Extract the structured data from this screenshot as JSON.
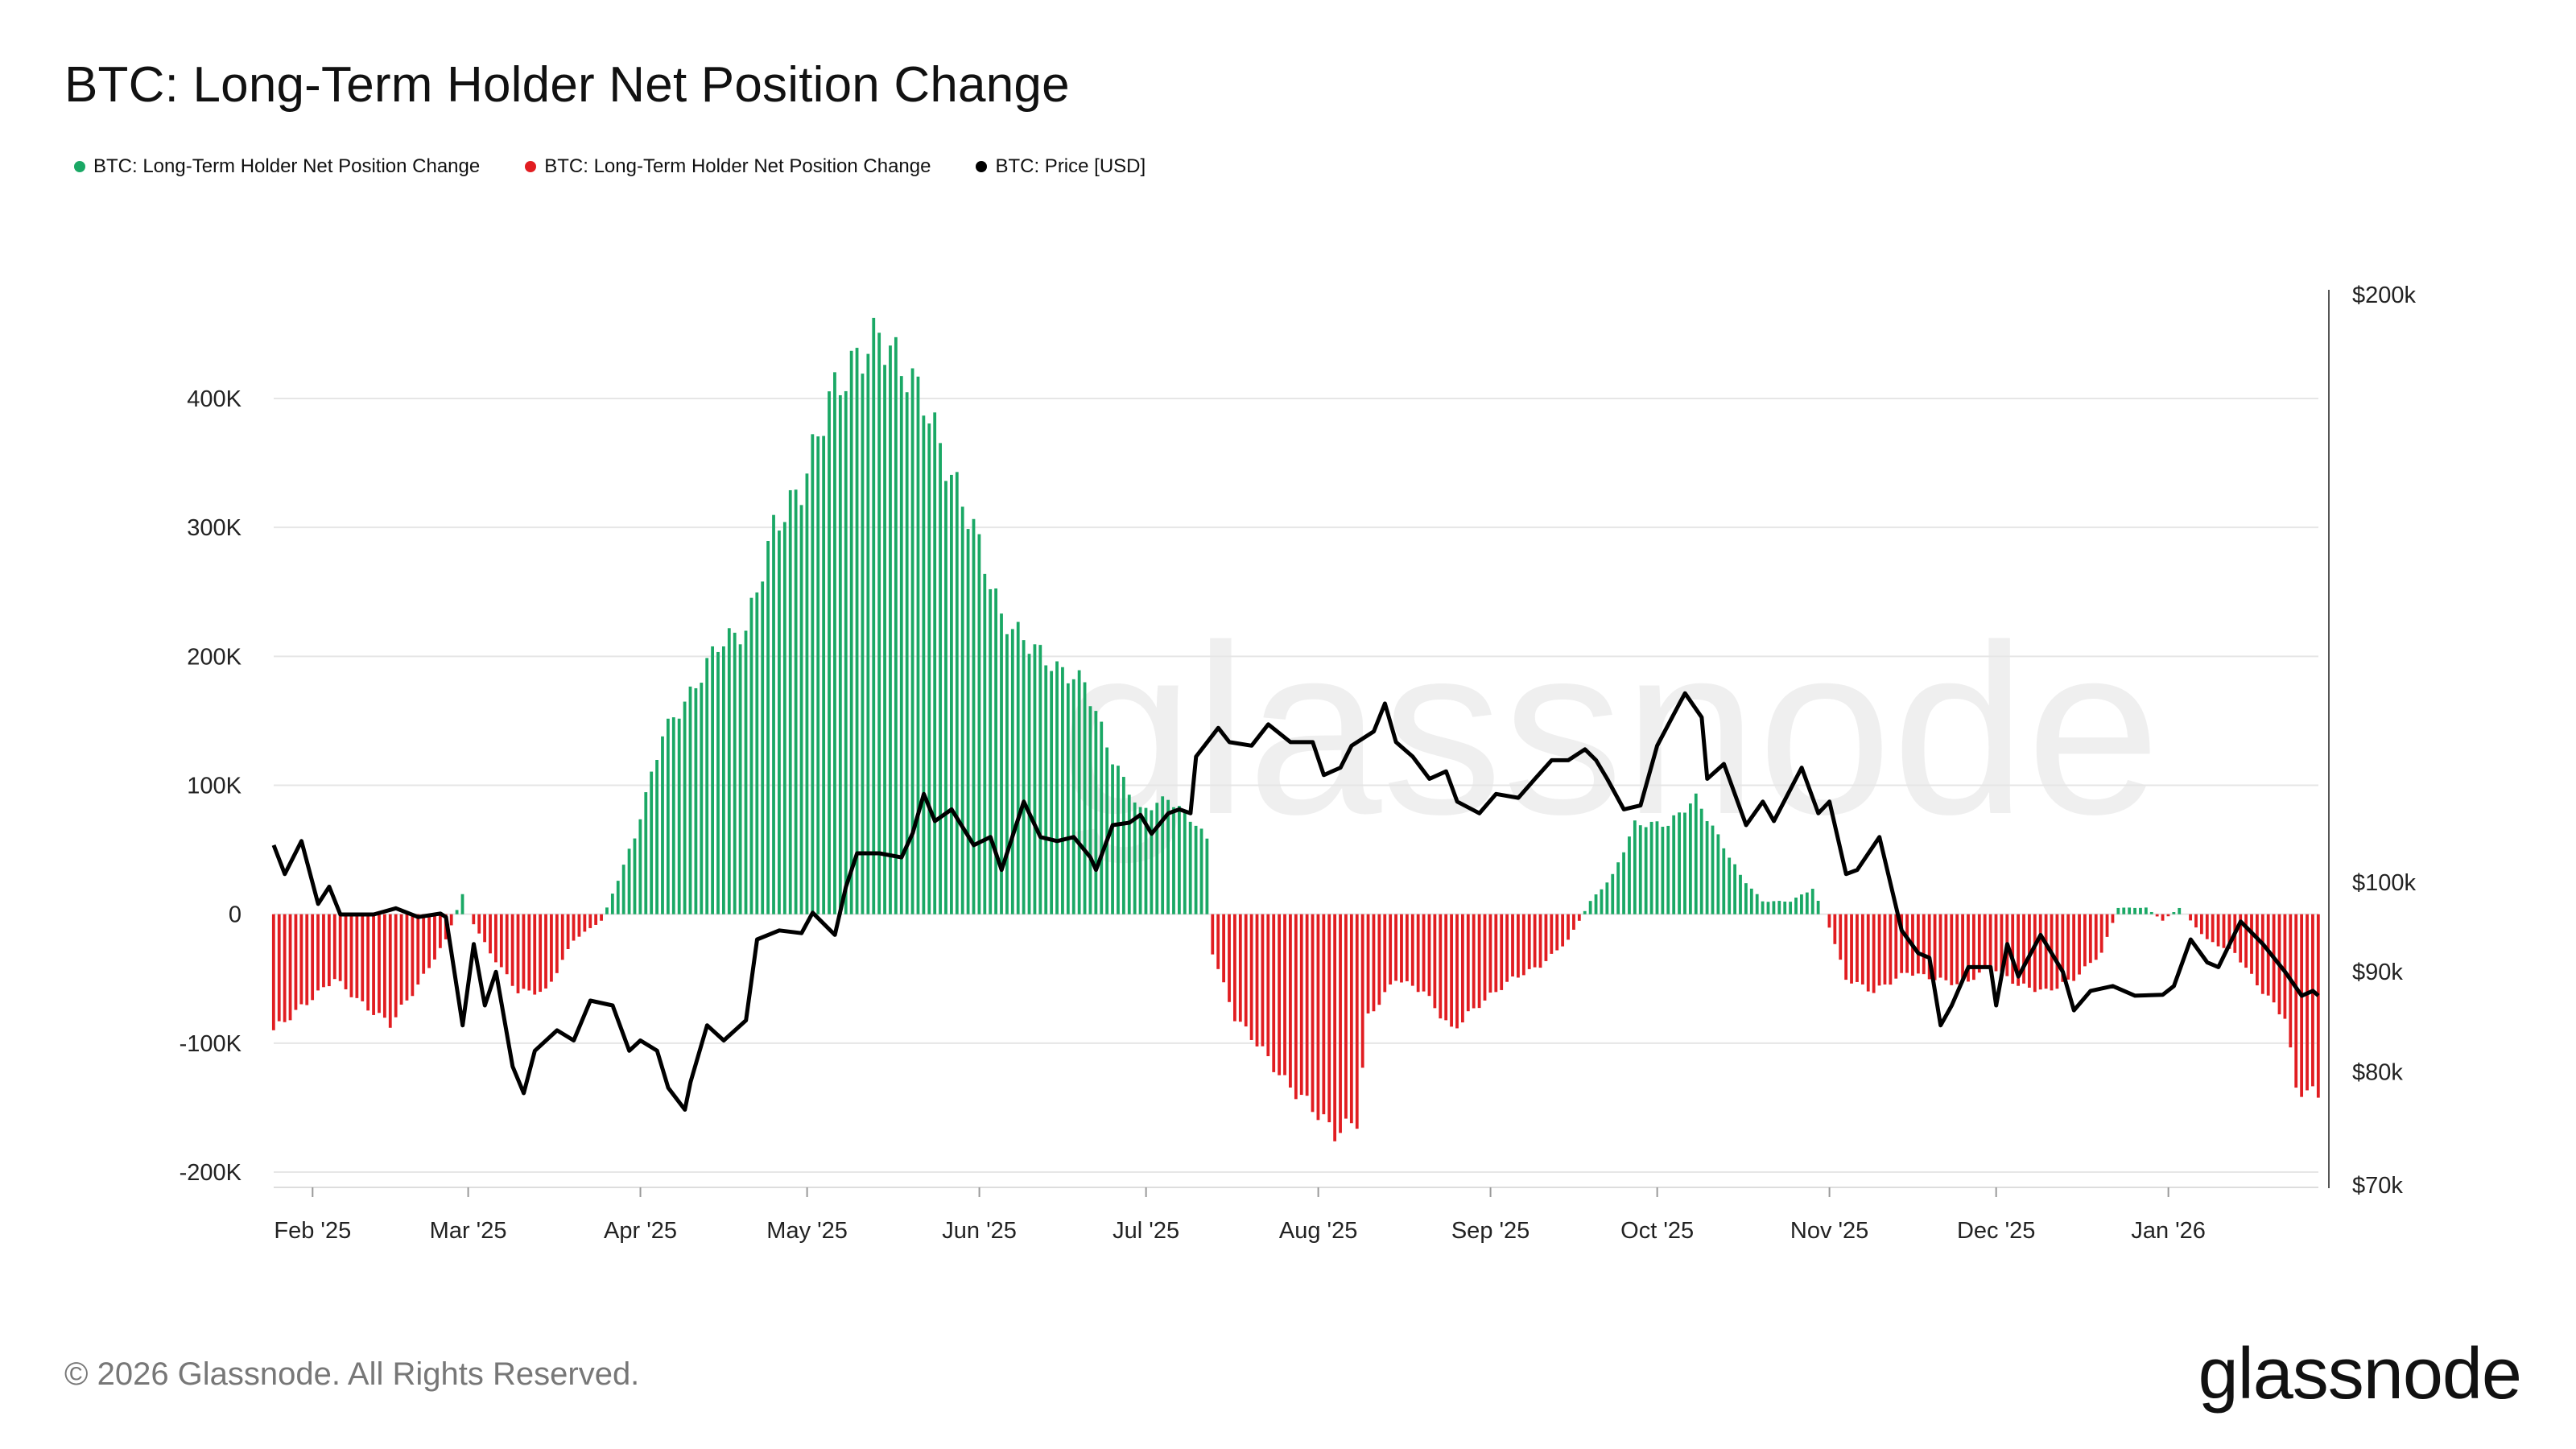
{
  "title": "BTC: Long-Term Holder Net Position Change",
  "legend": [
    {
      "label": "BTC: Long-Term Holder Net Position Change",
      "color": "#1aa865"
    },
    {
      "label": "BTC: Long-Term Holder Net Position Change",
      "color": "#e11d21"
    },
    {
      "label": "BTC: Price [USD]",
      "color": "#000000"
    }
  ],
  "footer": {
    "copyright": "© 2026 Glassnode. All Rights Reserved.",
    "logo": "glassnode"
  },
  "watermark": "glassnode",
  "colors": {
    "positive": "#1aa865",
    "negative": "#e11d21",
    "price": "#000000"
  },
  "chart_data": {
    "type": "bar",
    "title": "BTC: Long-Term Holder Net Position Change",
    "x_range": [
      "2025-01-25",
      "2026-01-28"
    ],
    "x_ticks": [
      {
        "label": "Feb '25",
        "date": "2025-02-01"
      },
      {
        "label": "Mar '25",
        "date": "2025-03-01"
      },
      {
        "label": "Apr '25",
        "date": "2025-04-01"
      },
      {
        "label": "May '25",
        "date": "2025-05-01"
      },
      {
        "label": "Jun '25",
        "date": "2025-06-01"
      },
      {
        "label": "Jul '25",
        "date": "2025-07-01"
      },
      {
        "label": "Aug '25",
        "date": "2025-08-01"
      },
      {
        "label": "Sep '25",
        "date": "2025-09-01"
      },
      {
        "label": "Oct '25",
        "date": "2025-10-01"
      },
      {
        "label": "Nov '25",
        "date": "2025-11-01"
      },
      {
        "label": "Dec '25",
        "date": "2025-12-01"
      },
      {
        "label": "Jan '26",
        "date": "2026-01-01"
      }
    ],
    "left_axis": {
      "ylim": [
        -200000,
        400000
      ],
      "ticks": [
        {
          "label": "400K",
          "value": 400000
        },
        {
          "label": "300K",
          "value": 300000
        },
        {
          "label": "200K",
          "value": 200000
        },
        {
          "label": "100K",
          "value": 100000
        },
        {
          "label": "0",
          "value": 0
        },
        {
          "label": "-100K",
          "value": -100000
        },
        {
          "label": "-200K",
          "value": -200000
        }
      ]
    },
    "right_axis": {
      "scale": "log",
      "ylim": [
        70000,
        200000
      ],
      "ticks": [
        {
          "label": "$200k",
          "value": 200000
        },
        {
          "label": "$100k",
          "value": 100000
        },
        {
          "label": "$90k",
          "value": 90000
        },
        {
          "label": "$80k",
          "value": 80000
        },
        {
          "label": "$70k",
          "value": 70000
        }
      ]
    },
    "net_position_change": [
      [
        "2025-01-25",
        -90000
      ],
      [
        "2025-02-01",
        -65000
      ],
      [
        "2025-02-05",
        -50000
      ],
      [
        "2025-02-10",
        -70000
      ],
      [
        "2025-02-15",
        -85000
      ],
      [
        "2025-02-20",
        -55000
      ],
      [
        "2025-02-25",
        -20000
      ],
      [
        "2025-02-28",
        15000
      ],
      [
        "2025-03-01",
        0
      ],
      [
        "2025-03-05",
        -30000
      ],
      [
        "2025-03-10",
        -60000
      ],
      [
        "2025-03-15",
        -60000
      ],
      [
        "2025-03-20",
        -20000
      ],
      [
        "2025-03-25",
        -5000
      ],
      [
        "2025-03-26",
        5000
      ],
      [
        "2025-03-31",
        60000
      ],
      [
        "2025-04-05",
        140000
      ],
      [
        "2025-04-10",
        170000
      ],
      [
        "2025-04-15",
        210000
      ],
      [
        "2025-04-20",
        220000
      ],
      [
        "2025-04-25",
        300000
      ],
      [
        "2025-04-30",
        330000
      ],
      [
        "2025-05-05",
        400000
      ],
      [
        "2025-05-10",
        430000
      ],
      [
        "2025-05-14",
        450000
      ],
      [
        "2025-05-18",
        425000
      ],
      [
        "2025-05-22",
        400000
      ],
      [
        "2025-05-26",
        350000
      ],
      [
        "2025-05-31",
        300000
      ],
      [
        "2025-06-05",
        230000
      ],
      [
        "2025-06-10",
        210000
      ],
      [
        "2025-06-15",
        190000
      ],
      [
        "2025-06-20",
        180000
      ],
      [
        "2025-06-25",
        120000
      ],
      [
        "2025-06-30",
        80000
      ],
      [
        "2025-07-05",
        90000
      ],
      [
        "2025-07-10",
        70000
      ],
      [
        "2025-07-12",
        58000
      ],
      [
        "2025-07-13",
        -30000
      ],
      [
        "2025-07-17",
        -80000
      ],
      [
        "2025-07-21",
        -100000
      ],
      [
        "2025-07-26",
        -130000
      ],
      [
        "2025-07-31",
        -150000
      ],
      [
        "2025-08-04",
        -170000
      ],
      [
        "2025-08-08",
        -160000
      ],
      [
        "2025-08-10",
        -80000
      ],
      [
        "2025-08-15",
        -50000
      ],
      [
        "2025-08-20",
        -60000
      ],
      [
        "2025-08-25",
        -90000
      ],
      [
        "2025-08-30",
        -70000
      ],
      [
        "2025-09-05",
        -50000
      ],
      [
        "2025-09-10",
        -40000
      ],
      [
        "2025-09-15",
        -20000
      ],
      [
        "2025-09-19",
        10000
      ],
      [
        "2025-09-23",
        30000
      ],
      [
        "2025-09-27",
        70000
      ],
      [
        "2025-10-03",
        70000
      ],
      [
        "2025-10-08",
        90000
      ],
      [
        "2025-10-12",
        60000
      ],
      [
        "2025-10-16",
        30000
      ],
      [
        "2025-10-20",
        10000
      ],
      [
        "2025-10-25",
        10000
      ],
      [
        "2025-10-29",
        20000
      ],
      [
        "2025-11-01",
        -10000
      ],
      [
        "2025-11-04",
        -50000
      ],
      [
        "2025-11-09",
        -60000
      ],
      [
        "2025-11-15",
        -45000
      ],
      [
        "2025-11-20",
        -50000
      ],
      [
        "2025-11-25",
        -55000
      ],
      [
        "2025-11-30",
        -40000
      ],
      [
        "2025-12-05",
        -55000
      ],
      [
        "2025-12-10",
        -60000
      ],
      [
        "2025-12-15",
        -50000
      ],
      [
        "2025-12-20",
        -30000
      ],
      [
        "2025-12-23",
        5000
      ],
      [
        "2025-12-28",
        5000
      ],
      [
        "2025-12-31",
        -5000
      ],
      [
        "2026-01-03",
        5000
      ],
      [
        "2026-01-08",
        -20000
      ],
      [
        "2026-01-13",
        -30000
      ],
      [
        "2026-01-18",
        -60000
      ],
      [
        "2026-01-22",
        -80000
      ],
      [
        "2026-01-24",
        -135000
      ],
      [
        "2026-01-28",
        -140000
      ]
    ],
    "price": [
      [
        "2025-01-25",
        104500
      ],
      [
        "2025-01-27",
        101000
      ],
      [
        "2025-01-30",
        105000
      ],
      [
        "2025-02-02",
        97500
      ],
      [
        "2025-02-04",
        99500
      ],
      [
        "2025-02-06",
        96300
      ],
      [
        "2025-02-12",
        96300
      ],
      [
        "2025-02-16",
        97000
      ],
      [
        "2025-02-20",
        96000
      ],
      [
        "2025-02-24",
        96400
      ],
      [
        "2025-02-25",
        96000
      ],
      [
        "2025-02-28",
        84500
      ],
      [
        "2025-03-02",
        93000
      ],
      [
        "2025-03-04",
        86500
      ],
      [
        "2025-03-06",
        90000
      ],
      [
        "2025-03-09",
        80500
      ],
      [
        "2025-03-11",
        78000
      ],
      [
        "2025-03-13",
        82000
      ],
      [
        "2025-03-17",
        84000
      ],
      [
        "2025-03-20",
        83000
      ],
      [
        "2025-03-23",
        87000
      ],
      [
        "2025-03-27",
        86500
      ],
      [
        "2025-03-30",
        82000
      ],
      [
        "2025-04-01",
        83000
      ],
      [
        "2025-04-04",
        82000
      ],
      [
        "2025-04-06",
        78500
      ],
      [
        "2025-04-09",
        76500
      ],
      [
        "2025-04-10",
        79000
      ],
      [
        "2025-04-13",
        84500
      ],
      [
        "2025-04-16",
        83000
      ],
      [
        "2025-04-20",
        85000
      ],
      [
        "2025-04-22",
        93500
      ],
      [
        "2025-04-26",
        94500
      ],
      [
        "2025-04-30",
        94200
      ],
      [
        "2025-05-02",
        96500
      ],
      [
        "2025-05-06",
        94000
      ],
      [
        "2025-05-08",
        99500
      ],
      [
        "2025-05-10",
        103500
      ],
      [
        "2025-05-14",
        103500
      ],
      [
        "2025-05-18",
        103000
      ],
      [
        "2025-05-20",
        106000
      ],
      [
        "2025-05-22",
        111000
      ],
      [
        "2025-05-24",
        107500
      ],
      [
        "2025-05-27",
        109000
      ],
      [
        "2025-05-31",
        104500
      ],
      [
        "2025-06-03",
        105500
      ],
      [
        "2025-06-05",
        101500
      ],
      [
        "2025-06-09",
        110000
      ],
      [
        "2025-06-12",
        105500
      ],
      [
        "2025-06-15",
        105000
      ],
      [
        "2025-06-18",
        105500
      ],
      [
        "2025-06-21",
        103000
      ],
      [
        "2025-06-22",
        101500
      ],
      [
        "2025-06-25",
        107000
      ],
      [
        "2025-06-28",
        107300
      ],
      [
        "2025-06-30",
        108300
      ],
      [
        "2025-07-02",
        105900
      ],
      [
        "2025-07-05",
        108500
      ],
      [
        "2025-07-07",
        109000
      ],
      [
        "2025-07-09",
        108500
      ],
      [
        "2025-07-10",
        116000
      ],
      [
        "2025-07-14",
        120000
      ],
      [
        "2025-07-16",
        118000
      ],
      [
        "2025-07-20",
        117500
      ],
      [
        "2025-07-23",
        120500
      ],
      [
        "2025-07-27",
        118000
      ],
      [
        "2025-07-31",
        118000
      ],
      [
        "2025-08-02",
        113500
      ],
      [
        "2025-08-05",
        114500
      ],
      [
        "2025-08-07",
        117500
      ],
      [
        "2025-08-11",
        119500
      ],
      [
        "2025-08-13",
        123500
      ],
      [
        "2025-08-15",
        118000
      ],
      [
        "2025-08-18",
        116000
      ],
      [
        "2025-08-21",
        113000
      ],
      [
        "2025-08-24",
        114000
      ],
      [
        "2025-08-26",
        110000
      ],
      [
        "2025-08-30",
        108500
      ],
      [
        "2025-09-02",
        111000
      ],
      [
        "2025-09-06",
        110500
      ],
      [
        "2025-09-09",
        113000
      ],
      [
        "2025-09-12",
        115500
      ],
      [
        "2025-09-15",
        115500
      ],
      [
        "2025-09-18",
        117000
      ],
      [
        "2025-09-20",
        115500
      ],
      [
        "2025-09-22",
        113000
      ],
      [
        "2025-09-25",
        109000
      ],
      [
        "2025-09-28",
        109500
      ],
      [
        "2025-10-01",
        117500
      ],
      [
        "2025-10-05",
        123500
      ],
      [
        "2025-10-06",
        125000
      ],
      [
        "2025-10-09",
        121500
      ],
      [
        "2025-10-10",
        113000
      ],
      [
        "2025-10-13",
        115000
      ],
      [
        "2025-10-17",
        107000
      ],
      [
        "2025-10-20",
        110000
      ],
      [
        "2025-10-22",
        107500
      ],
      [
        "2025-10-27",
        114500
      ],
      [
        "2025-10-30",
        108500
      ],
      [
        "2025-11-01",
        110000
      ],
      [
        "2025-11-04",
        101000
      ],
      [
        "2025-11-06",
        101500
      ],
      [
        "2025-11-10",
        105500
      ],
      [
        "2025-11-14",
        94500
      ],
      [
        "2025-11-17",
        92000
      ],
      [
        "2025-11-19",
        91500
      ],
      [
        "2025-11-21",
        84500
      ],
      [
        "2025-11-23",
        86500
      ],
      [
        "2025-11-26",
        90500
      ],
      [
        "2025-11-30",
        90500
      ],
      [
        "2025-12-01",
        86500
      ],
      [
        "2025-12-03",
        93000
      ],
      [
        "2025-12-05",
        89500
      ],
      [
        "2025-12-09",
        94000
      ],
      [
        "2025-12-13",
        90000
      ],
      [
        "2025-12-15",
        86000
      ],
      [
        "2025-12-18",
        88000
      ],
      [
        "2025-12-22",
        88500
      ],
      [
        "2025-12-26",
        87500
      ],
      [
        "2025-12-31",
        87600
      ],
      [
        "2026-01-02",
        88500
      ],
      [
        "2026-01-05",
        93500
      ],
      [
        "2026-01-08",
        91000
      ],
      [
        "2026-01-10",
        90500
      ],
      [
        "2026-01-14",
        95500
      ],
      [
        "2026-01-18",
        93000
      ],
      [
        "2026-01-22",
        90000
      ],
      [
        "2026-01-25",
        87500
      ],
      [
        "2026-01-27",
        88000
      ],
      [
        "2026-01-28",
        87500
      ]
    ]
  }
}
